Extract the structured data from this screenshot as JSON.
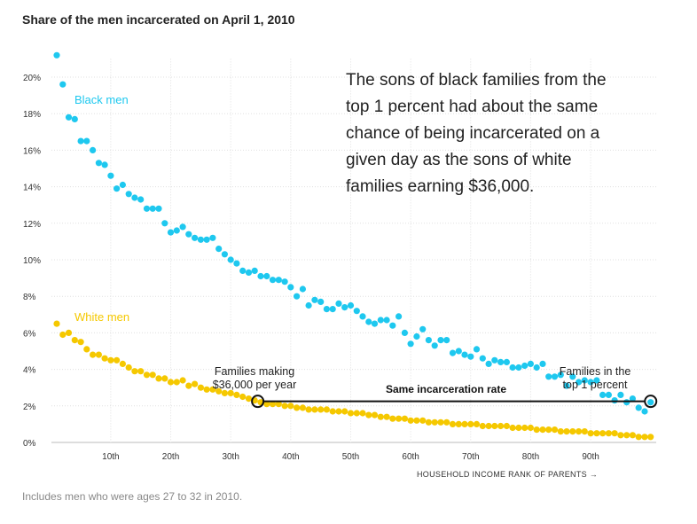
{
  "chart_data": {
    "type": "scatter",
    "title": "Share of the men incarcerated on April 1, 2010",
    "xlabel": "HOUSEHOLD INCOME RANK OF PARENTS →",
    "ylabel": "",
    "xlim": [
      1,
      100
    ],
    "ylim": [
      0,
      22
    ],
    "grid": true,
    "x_ticks": [
      10,
      20,
      30,
      40,
      50,
      60,
      70,
      80,
      90
    ],
    "x_tick_labels": [
      "10th",
      "20th",
      "30th",
      "40th",
      "50th",
      "60th",
      "70th",
      "80th",
      "90th"
    ],
    "y_ticks": [
      0,
      2,
      4,
      6,
      8,
      10,
      12,
      14,
      16,
      18,
      20
    ],
    "y_tick_labels": [
      "0%",
      "2%",
      "4%",
      "6%",
      "8%",
      "10%",
      "12%",
      "14%",
      "16%",
      "18%",
      "20%"
    ],
    "series": [
      {
        "name": "Black men",
        "color": "#1ec8ef",
        "x": [
          1,
          2,
          3,
          4,
          5,
          6,
          7,
          8,
          9,
          10,
          11,
          12,
          13,
          14,
          15,
          16,
          17,
          18,
          19,
          20,
          21,
          22,
          23,
          24,
          25,
          26,
          27,
          28,
          29,
          30,
          31,
          32,
          33,
          34,
          35,
          36,
          37,
          38,
          39,
          40,
          41,
          42,
          43,
          44,
          45,
          46,
          47,
          48,
          49,
          50,
          51,
          52,
          53,
          54,
          55,
          56,
          57,
          58,
          59,
          60,
          61,
          62,
          63,
          64,
          65,
          66,
          67,
          68,
          69,
          70,
          71,
          72,
          73,
          74,
          75,
          76,
          77,
          78,
          79,
          80,
          81,
          82,
          83,
          84,
          85,
          86,
          87,
          88,
          89,
          90,
          91,
          92,
          93,
          94,
          95,
          96,
          97,
          98,
          99,
          100
        ],
        "values": [
          21.2,
          19.6,
          17.8,
          17.7,
          16.5,
          16.5,
          16.0,
          15.3,
          15.2,
          14.6,
          13.9,
          14.1,
          13.6,
          13.4,
          13.3,
          12.8,
          12.8,
          12.8,
          12.0,
          11.5,
          11.6,
          11.8,
          11.4,
          11.2,
          11.1,
          11.1,
          11.2,
          10.6,
          10.3,
          10.0,
          9.8,
          9.4,
          9.3,
          9.4,
          9.1,
          9.1,
          8.9,
          8.9,
          8.8,
          8.5,
          8.0,
          8.4,
          7.5,
          7.8,
          7.7,
          7.3,
          7.3,
          7.6,
          7.4,
          7.5,
          7.2,
          6.9,
          6.6,
          6.5,
          6.7,
          6.7,
          6.4,
          6.9,
          6.0,
          5.4,
          5.8,
          6.2,
          5.6,
          5.3,
          5.6,
          5.6,
          4.9,
          5.0,
          4.8,
          4.7,
          5.1,
          4.6,
          4.3,
          4.5,
          4.4,
          4.4,
          4.1,
          4.1,
          4.2,
          4.3,
          4.1,
          4.3,
          3.6,
          3.6,
          3.7,
          3.1,
          3.6,
          3.3,
          3.4,
          3.3,
          3.4,
          2.6,
          2.6,
          2.3,
          2.6,
          2.2,
          2.4,
          1.9,
          1.7,
          2.2
        ]
      },
      {
        "name": "White men",
        "color": "#f5c800",
        "x": [
          1,
          2,
          3,
          4,
          5,
          6,
          7,
          8,
          9,
          10,
          11,
          12,
          13,
          14,
          15,
          16,
          17,
          18,
          19,
          20,
          21,
          22,
          23,
          24,
          25,
          26,
          27,
          28,
          29,
          30,
          31,
          32,
          33,
          34,
          35,
          36,
          37,
          38,
          39,
          40,
          41,
          42,
          43,
          44,
          45,
          46,
          47,
          48,
          49,
          50,
          51,
          52,
          53,
          54,
          55,
          56,
          57,
          58,
          59,
          60,
          61,
          62,
          63,
          64,
          65,
          66,
          67,
          68,
          69,
          70,
          71,
          72,
          73,
          74,
          75,
          76,
          77,
          78,
          79,
          80,
          81,
          82,
          83,
          84,
          85,
          86,
          87,
          88,
          89,
          90,
          91,
          92,
          93,
          94,
          95,
          96,
          97,
          98,
          99,
          100
        ],
        "values": [
          6.5,
          5.9,
          6.0,
          5.6,
          5.5,
          5.1,
          4.8,
          4.8,
          4.6,
          4.5,
          4.5,
          4.3,
          4.1,
          3.9,
          3.9,
          3.7,
          3.7,
          3.5,
          3.5,
          3.3,
          3.3,
          3.4,
          3.1,
          3.2,
          3.0,
          2.9,
          2.9,
          2.8,
          2.7,
          2.7,
          2.6,
          2.5,
          2.4,
          2.3,
          2.2,
          2.1,
          2.1,
          2.1,
          2.0,
          2.0,
          1.9,
          1.9,
          1.8,
          1.8,
          1.8,
          1.8,
          1.7,
          1.7,
          1.7,
          1.6,
          1.6,
          1.6,
          1.5,
          1.5,
          1.4,
          1.4,
          1.3,
          1.3,
          1.3,
          1.2,
          1.2,
          1.2,
          1.1,
          1.1,
          1.1,
          1.1,
          1.0,
          1.0,
          1.0,
          1.0,
          1.0,
          0.9,
          0.9,
          0.9,
          0.9,
          0.9,
          0.8,
          0.8,
          0.8,
          0.8,
          0.7,
          0.7,
          0.7,
          0.7,
          0.6,
          0.6,
          0.6,
          0.6,
          0.6,
          0.5,
          0.5,
          0.5,
          0.5,
          0.5,
          0.4,
          0.4,
          0.4,
          0.3,
          0.3,
          0.3
        ]
      }
    ],
    "annotations": {
      "left_label_line1": "Families making",
      "left_label_line2": "$36,000 per year",
      "left_point": {
        "x": 34.5,
        "y": 2.25
      },
      "right_label_line1": "Families in the",
      "right_label_line2": "top 1 percent",
      "right_point": {
        "x": 100,
        "y": 2.25
      },
      "connector_label": "Same incarceration rate",
      "callout_lines": [
        "The sons of black families from the",
        "top 1 percent had about the same",
        "chance of being incarcerated on a",
        "given day as the sons of white",
        "families earning $36,000."
      ]
    },
    "note": "Includes men who were ages 27 to 32 in 2010."
  }
}
